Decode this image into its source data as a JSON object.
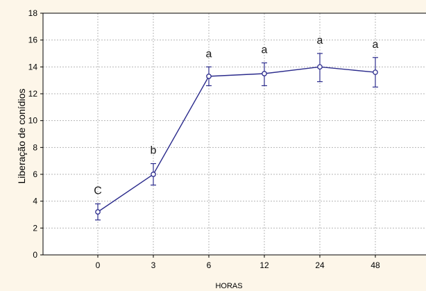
{
  "chart_data": {
    "type": "line",
    "categories": [
      "0",
      "3",
      "6",
      "12",
      "24",
      "48"
    ],
    "xlabel": "HORAS",
    "ylabel": "Liberação de conídios",
    "ylim": [
      0,
      18
    ],
    "yticks": [
      0,
      2,
      4,
      6,
      8,
      10,
      12,
      14,
      16,
      18
    ],
    "grid": true,
    "series": [
      {
        "values": [
          3.2,
          6.0,
          13.3,
          13.5,
          14.0,
          13.6
        ],
        "error_low": [
          2.6,
          5.2,
          12.6,
          12.6,
          12.9,
          12.5
        ],
        "error_high": [
          3.8,
          6.8,
          14.0,
          14.3,
          15.0,
          14.7
        ],
        "group_labels": [
          "C",
          "b",
          "a",
          "a",
          "a",
          "a"
        ],
        "color": "#2b2b8c"
      }
    ]
  }
}
